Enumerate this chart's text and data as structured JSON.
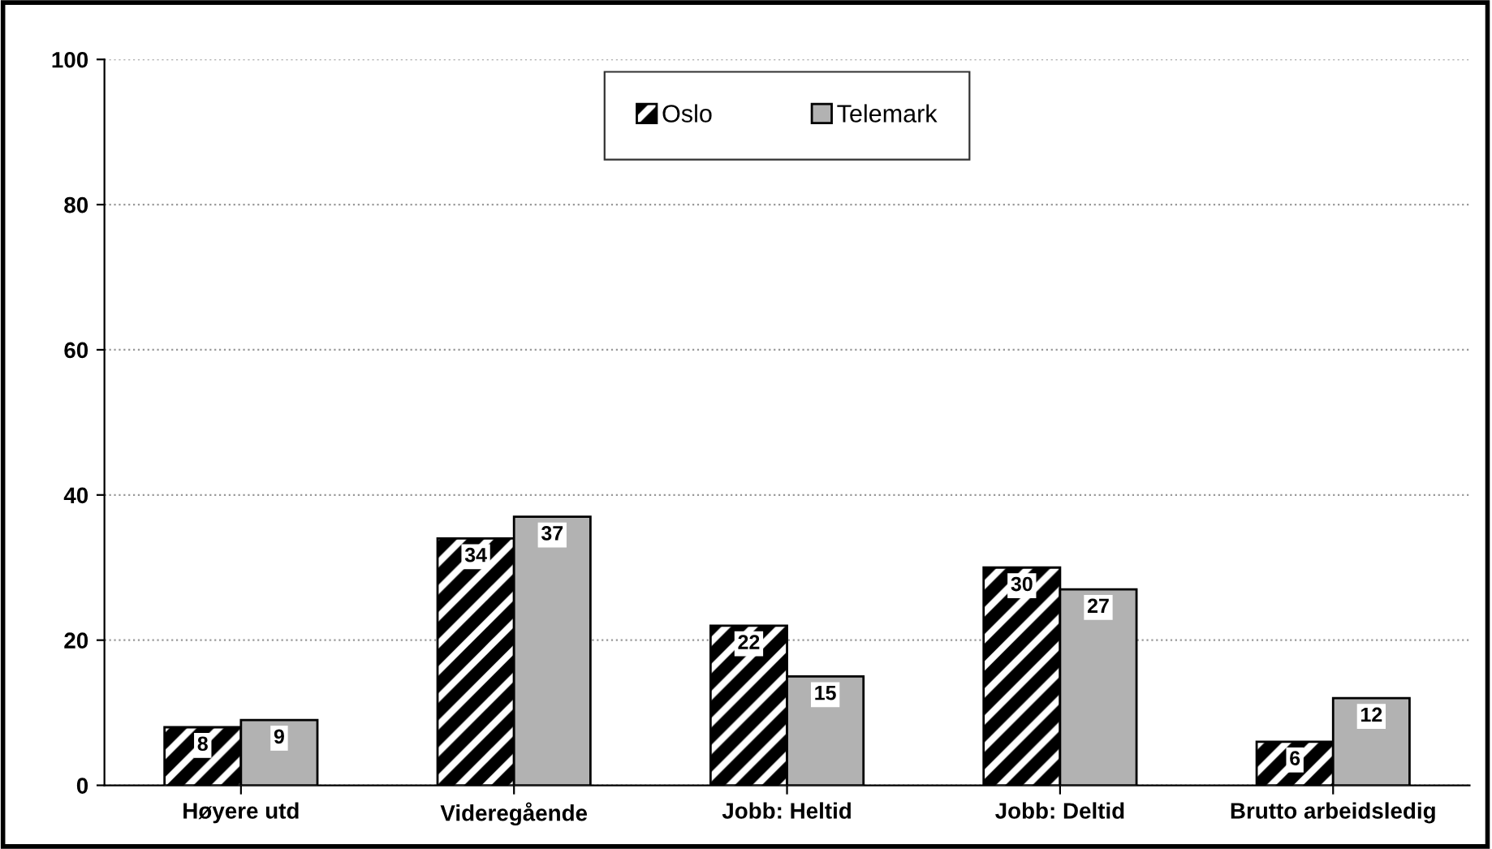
{
  "chart_data": {
    "type": "bar",
    "categories": [
      "Høyere utd",
      "Videregående",
      "Jobb: Heltid",
      "Jobb: Deltid",
      "Brutto arbeidsledig"
    ],
    "series": [
      {
        "name": "Oslo",
        "color": "#000000",
        "values": [
          8,
          34,
          22,
          30,
          6
        ]
      },
      {
        "name": "Telemark",
        "color": "#b2b2b2",
        "values": [
          9,
          37,
          15,
          27,
          12
        ]
      }
    ],
    "ylim": [
      0,
      100
    ],
    "yticks": [
      0,
      20,
      40,
      60,
      80,
      100
    ],
    "grid": "y",
    "legend": "top",
    "data_labels": true
  }
}
